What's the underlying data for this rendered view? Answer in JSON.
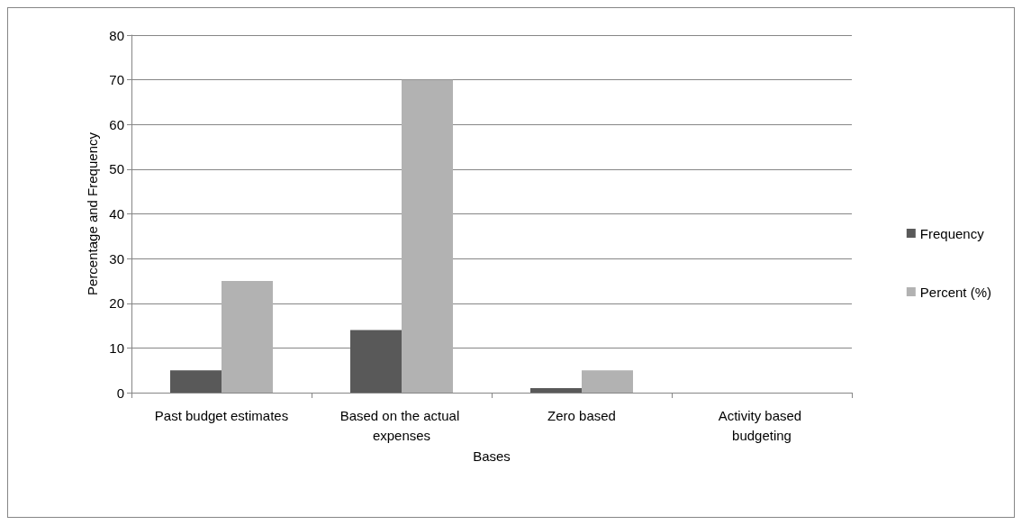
{
  "chart_data": {
    "type": "bar",
    "xlabel": "Bases",
    "ylabel": "Percentage and Frequency",
    "categories": [
      "Past budget estimates",
      "Based on the actual expenses",
      "Zero based",
      "Activity based budgeting"
    ],
    "series": [
      {
        "name": "Frequency",
        "color": "#595959",
        "values": [
          5,
          14,
          1,
          0
        ]
      },
      {
        "name": "Percent (%)",
        "color": "#b2b2b2",
        "values": [
          25,
          70,
          5,
          0
        ]
      }
    ],
    "ylim": [
      0,
      80
    ],
    "yticks": [
      0,
      10,
      20,
      30,
      40,
      50,
      60,
      70,
      80
    ],
    "grid": "y",
    "legend": "right"
  }
}
